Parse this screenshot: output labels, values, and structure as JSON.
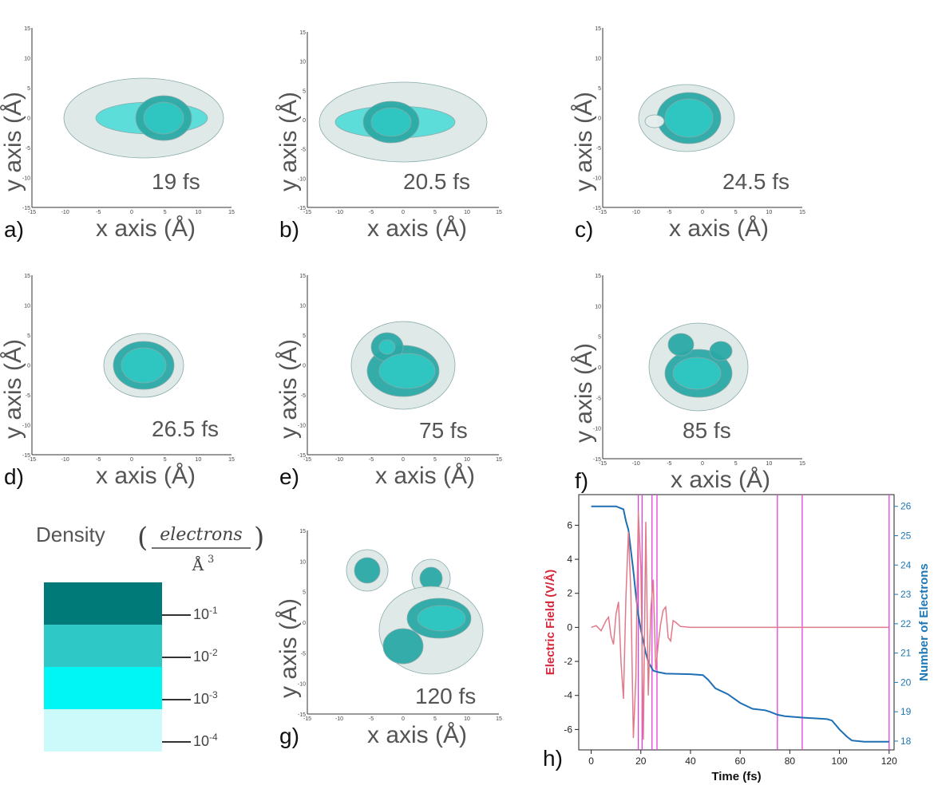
{
  "axis_labels": {
    "x": "x axis (Å)",
    "y": "y axis (Å)"
  },
  "density_panels": [
    {
      "label": "a)",
      "time": "19 fs"
    },
    {
      "label": "b)",
      "time": "20.5 fs"
    },
    {
      "label": "c)",
      "time": "24.5 fs"
    },
    {
      "label": "d)",
      "time": "26.5 fs"
    },
    {
      "label": "e)",
      "time": "75 fs"
    },
    {
      "label": "f)",
      "time": "85 fs"
    },
    {
      "label": "g)",
      "time": "120 fs"
    }
  ],
  "legend": {
    "title": "Density",
    "unit_numerator": "electrons",
    "unit_denominator": "Å",
    "unit_exponent": "3",
    "levels": [
      {
        "label": "10",
        "exp": "-1",
        "color": "#007a78"
      },
      {
        "label": "10",
        "exp": "-2",
        "color": "#2ec9c6"
      },
      {
        "label": "10",
        "exp": "-3",
        "color": "#00f5f5"
      },
      {
        "label": "10",
        "exp": "-4",
        "color": "#ccfafa"
      }
    ]
  },
  "chart_data": {
    "type": "line",
    "panel_label": "h)",
    "xlabel": "Time (fs)",
    "ylabel_left": "Electric Field (V/Å)",
    "ylabel_right": "Number of Electrons",
    "xlim": [
      -5,
      122
    ],
    "ylim_left": [
      -7.2,
      7.8
    ],
    "ylim_right": [
      17.7,
      26.4
    ],
    "x_ticks": [
      0,
      20,
      40,
      60,
      80,
      100,
      120
    ],
    "y_ticks_left": [
      -6,
      -4,
      -2,
      0,
      2,
      4,
      6
    ],
    "y_ticks_right": [
      18,
      19,
      20,
      21,
      22,
      23,
      24,
      25,
      26
    ],
    "vertical_lines": [
      19,
      20.5,
      24.5,
      26.5,
      75,
      85,
      120
    ],
    "colors": {
      "field": "#e07a8a",
      "electrons": "#1f6fb4",
      "vlines": "#e040e0",
      "left_label": "#d6273b",
      "right_label": "#1f77b4"
    },
    "series": [
      {
        "name": "Number of Electrons",
        "axis": "right",
        "x": [
          0,
          10,
          13,
          14,
          15,
          16,
          17,
          18,
          19,
          20,
          21,
          22,
          23,
          25,
          27,
          30,
          40,
          45,
          47,
          50,
          55,
          60,
          65,
          70,
          72,
          75,
          78,
          85,
          95,
          97,
          100,
          103,
          105,
          110,
          120
        ],
        "y": [
          26,
          26,
          25.9,
          25.5,
          25.2,
          24.5,
          23.8,
          23,
          22.3,
          21.8,
          21.4,
          21,
          20.7,
          20.4,
          20.35,
          20.3,
          20.28,
          20.25,
          20.1,
          19.8,
          19.6,
          19.3,
          19.1,
          19.05,
          19,
          18.9,
          18.85,
          18.8,
          18.75,
          18.7,
          18.4,
          18.15,
          18.02,
          17.98,
          17.98
        ]
      },
      {
        "name": "Electric Field",
        "axis": "left",
        "x": [
          0,
          2,
          4,
          6,
          7,
          8,
          9,
          10,
          11,
          12,
          13,
          14,
          15,
          16,
          17,
          18,
          19,
          20,
          21,
          22,
          23,
          24,
          25,
          26,
          27,
          28,
          29,
          30,
          31,
          32,
          33,
          34,
          36,
          40,
          50,
          60,
          70,
          80,
          90,
          100,
          110,
          120
        ],
        "y": [
          0,
          0.1,
          -0.2,
          0.4,
          0.6,
          -0.5,
          -1.0,
          0.8,
          1.5,
          -2.0,
          -4.2,
          1.8,
          5.6,
          2.0,
          -6.5,
          -3.0,
          6.8,
          3.5,
          -6.6,
          6.2,
          -4.0,
          1.0,
          2.8,
          -2.5,
          -1.0,
          0.2,
          1.0,
          1.2,
          -0.6,
          -0.8,
          0.4,
          0.3,
          0.05,
          0,
          0,
          0,
          0,
          0,
          0,
          0,
          0,
          0
        ]
      }
    ]
  }
}
